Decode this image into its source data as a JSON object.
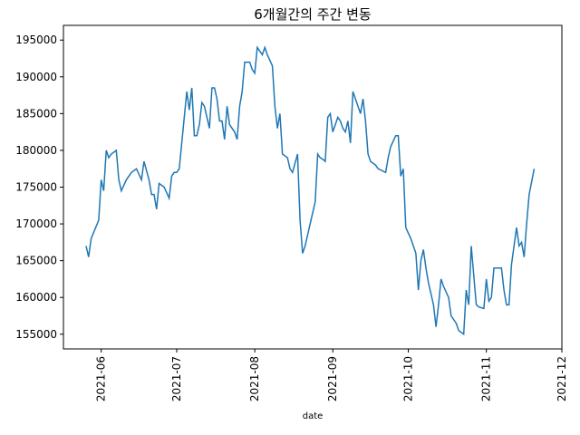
{
  "chart_data": {
    "type": "line",
    "title": "6개월간의 주간 변동",
    "x_label": "date",
    "x": [
      "2021-05-26",
      "2021-05-27",
      "2021-05-28",
      "2021-05-31",
      "2021-06-01",
      "2021-06-02",
      "2021-06-03",
      "2021-06-04",
      "2021-06-05",
      "2021-06-07",
      "2021-06-08",
      "2021-06-09",
      "2021-06-11",
      "2021-06-13",
      "2021-06-15",
      "2021-06-17",
      "2021-06-18",
      "2021-06-20",
      "2021-06-21",
      "2021-06-22",
      "2021-06-23",
      "2021-06-24",
      "2021-06-26",
      "2021-06-28",
      "2021-06-29",
      "2021-06-30",
      "2021-07-01",
      "2021-07-02",
      "2021-07-03",
      "2021-07-05",
      "2021-07-06",
      "2021-07-07",
      "2021-07-08",
      "2021-07-09",
      "2021-07-10",
      "2021-07-11",
      "2021-07-12",
      "2021-07-14",
      "2021-07-15",
      "2021-07-16",
      "2021-07-17",
      "2021-07-18",
      "2021-07-19",
      "2021-07-20",
      "2021-07-21",
      "2021-07-22",
      "2021-07-24",
      "2021-07-25",
      "2021-07-26",
      "2021-07-27",
      "2021-07-28",
      "2021-07-30",
      "2021-07-31",
      "2021-08-01",
      "2021-08-02",
      "2021-08-04",
      "2021-08-05",
      "2021-08-06",
      "2021-08-08",
      "2021-08-09",
      "2021-08-10",
      "2021-08-11",
      "2021-08-12",
      "2021-08-14",
      "2021-08-15",
      "2021-08-16",
      "2021-08-18",
      "2021-08-19",
      "2021-08-20",
      "2021-08-21",
      "2021-08-22",
      "2021-08-24",
      "2021-08-25",
      "2021-08-26",
      "2021-08-27",
      "2021-08-28",
      "2021-08-29",
      "2021-08-30",
      "2021-08-31",
      "2021-09-01",
      "2021-09-03",
      "2021-09-04",
      "2021-09-05",
      "2021-09-06",
      "2021-09-07",
      "2021-09-08",
      "2021-09-09",
      "2021-09-10",
      "2021-09-12",
      "2021-09-13",
      "2021-09-14",
      "2021-09-15",
      "2021-09-16",
      "2021-09-18",
      "2021-09-19",
      "2021-09-22",
      "2021-09-23",
      "2021-09-24",
      "2021-09-26",
      "2021-09-27",
      "2021-09-28",
      "2021-09-29",
      "2021-09-30",
      "2021-10-02",
      "2021-10-04",
      "2021-10-05",
      "2021-10-06",
      "2021-10-07",
      "2021-10-08",
      "2021-10-09",
      "2021-10-11",
      "2021-10-12",
      "2021-10-13",
      "2021-10-14",
      "2021-10-15",
      "2021-10-17",
      "2021-10-18",
      "2021-10-20",
      "2021-10-21",
      "2021-10-23",
      "2021-10-24",
      "2021-10-25",
      "2021-10-26",
      "2021-10-28",
      "2021-10-29",
      "2021-10-31",
      "2021-11-01",
      "2021-11-02",
      "2021-11-03",
      "2021-11-04",
      "2021-11-05",
      "2021-11-07",
      "2021-11-08",
      "2021-11-09",
      "2021-11-10",
      "2021-11-11",
      "2021-11-13",
      "2021-11-14",
      "2021-11-15",
      "2021-11-16",
      "2021-11-17",
      "2021-11-18",
      "2021-11-20"
    ],
    "series": [
      {
        "color": "#1f77b4",
        "values": [
          167000,
          165500,
          168000,
          170500,
          176000,
          174500,
          180000,
          179000,
          179500,
          180000,
          176000,
          174500,
          176000,
          177000,
          177500,
          176000,
          178500,
          176000,
          174000,
          174000,
          172000,
          175500,
          175000,
          173500,
          176500,
          177000,
          177000,
          177500,
          181000,
          188000,
          185500,
          188500,
          182000,
          182000,
          183500,
          186500,
          186000,
          183000,
          188500,
          188500,
          187000,
          184000,
          184000,
          181500,
          186000,
          183500,
          182500,
          181500,
          186000,
          188000,
          192000,
          192000,
          191000,
          190500,
          194000,
          193000,
          194000,
          193000,
          191500,
          186000,
          183000,
          185000,
          179500,
          179000,
          177500,
          177000,
          179500,
          170500,
          166000,
          167000,
          168500,
          171500,
          173000,
          179500,
          179000,
          178800,
          178500,
          184500,
          185000,
          182500,
          184500,
          184000,
          183000,
          182500,
          184000,
          181000,
          188000,
          187000,
          185000,
          187000,
          184000,
          179500,
          178500,
          178000,
          177500,
          177000,
          179000,
          180500,
          182000,
          182000,
          176500,
          177500,
          169500,
          168000,
          166000,
          161000,
          165000,
          166500,
          164000,
          162000,
          159000,
          156000,
          159000,
          162500,
          161500,
          160000,
          157500,
          156500,
          155500,
          155000,
          161000,
          159000,
          167000,
          159000,
          158700,
          158500,
          162500,
          159500,
          160000,
          164000,
          164000,
          164000,
          161000,
          159000,
          159000,
          164500,
          169500,
          167000,
          167500,
          165500,
          170000,
          174000,
          177500
        ]
      }
    ],
    "xlim": [
      "2021-05-17",
      "2021-12-01"
    ],
    "xticks": [
      {
        "value": "2021-06-01",
        "label": "2021-06"
      },
      {
        "value": "2021-07-01",
        "label": "2021-07"
      },
      {
        "value": "2021-08-01",
        "label": "2021-08"
      },
      {
        "value": "2021-09-01",
        "label": "2021-09"
      },
      {
        "value": "2021-10-01",
        "label": "2021-10"
      },
      {
        "value": "2021-11-01",
        "label": "2021-11"
      },
      {
        "value": "2021-12-01",
        "label": "2021-12"
      }
    ],
    "ylim": [
      153000,
      197000
    ],
    "yticks": [
      155000,
      160000,
      165000,
      170000,
      175000,
      180000,
      185000,
      190000,
      195000
    ]
  }
}
